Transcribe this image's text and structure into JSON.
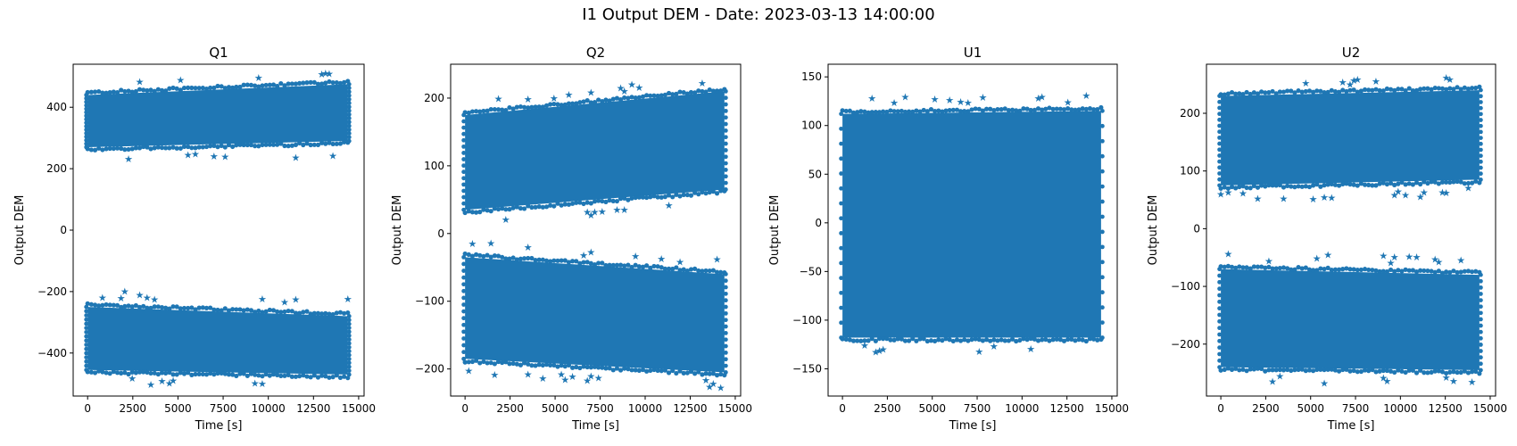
{
  "figure": {
    "title": "I1 Output DEM - Date: 2023-03-13 14:00:00"
  },
  "colors": {
    "marker": "#1f77b4",
    "axes": "#000000"
  },
  "chart_data": [
    {
      "type": "scatter",
      "title": "Q1",
      "xlabel": "Time [s]",
      "ylabel": "Output DEM",
      "xlim": [
        -800,
        15300
      ],
      "ylim": [
        -540,
        540
      ],
      "xticks": [
        0,
        2500,
        5000,
        7500,
        10000,
        12500,
        15000
      ],
      "yticks": [
        -400,
        -200,
        0,
        200,
        400
      ],
      "marker": "star",
      "grid": false,
      "series": [
        {
          "x_range": [
            0,
            14400
          ],
          "y_low_start": 270,
          "y_low_end": 290,
          "y_high_start": 440,
          "y_high_end": 475
        },
        {
          "x_range": [
            0,
            14400
          ],
          "y_low_start": -455,
          "y_low_end": -470,
          "y_high_start": -250,
          "y_high_end": -280
        }
      ]
    },
    {
      "type": "scatter",
      "title": "Q2",
      "xlabel": "Time [s]",
      "ylabel": "Output DEM",
      "xlim": [
        -800,
        15300
      ],
      "ylim": [
        -240,
        250
      ],
      "xticks": [
        0,
        2500,
        5000,
        7500,
        10000,
        12500,
        15000
      ],
      "yticks": [
        -200,
        -100,
        0,
        100,
        200
      ],
      "marker": "star",
      "grid": false,
      "series": [
        {
          "x_range": [
            0,
            14400
          ],
          "y_low_start": 35,
          "y_low_end": 65,
          "y_high_start": 175,
          "y_high_end": 210
        },
        {
          "x_range": [
            0,
            14400
          ],
          "y_low_start": -185,
          "y_low_end": -205,
          "y_high_start": -35,
          "y_high_end": -60
        }
      ]
    },
    {
      "type": "scatter",
      "title": "U1",
      "xlabel": "Time [s]",
      "ylabel": "Output DEM",
      "xlim": [
        -800,
        15300
      ],
      "ylim": [
        -178,
        163
      ],
      "xticks": [
        0,
        2500,
        5000,
        7500,
        10000,
        12500,
        15000
      ],
      "yticks": [
        -150,
        -100,
        -50,
        0,
        50,
        100,
        150
      ],
      "marker": "star",
      "grid": false,
      "series": [
        {
          "x_range": [
            0,
            14400
          ],
          "y_low_start": -118,
          "y_low_end": -118,
          "y_high_start": 112,
          "y_high_end": 115
        }
      ]
    },
    {
      "type": "scatter",
      "title": "U2",
      "xlabel": "Time [s]",
      "ylabel": "Output DEM",
      "xlim": [
        -800,
        15300
      ],
      "ylim": [
        -290,
        285
      ],
      "xticks": [
        0,
        2500,
        5000,
        7500,
        10000,
        12500,
        15000
      ],
      "yticks": [
        -200,
        -100,
        0,
        100,
        200
      ],
      "marker": "star",
      "grid": false,
      "series": [
        {
          "x_range": [
            0,
            14400
          ],
          "y_low_start": 75,
          "y_low_end": 85,
          "y_high_start": 230,
          "y_high_end": 240
        },
        {
          "x_range": [
            0,
            14400
          ],
          "y_low_start": -240,
          "y_low_end": -245,
          "y_high_start": -70,
          "y_high_end": -80
        }
      ]
    }
  ]
}
